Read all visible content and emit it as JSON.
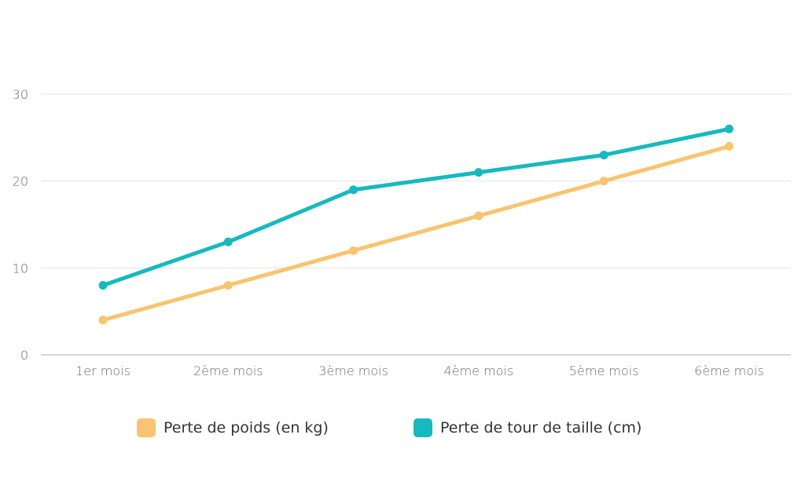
{
  "chart_data": {
    "type": "line",
    "categories": [
      "1er mois",
      "2ème mois",
      "3ème mois",
      "4ème mois",
      "5ème mois",
      "6ème mois"
    ],
    "series": [
      {
        "name": "Perte de poids (en kg)",
        "color": "#f8c471",
        "values": [
          4,
          8,
          12,
          16,
          20,
          24
        ]
      },
      {
        "name": "Perte de tour de taille (cm)",
        "color": "#17b9be",
        "values": [
          8,
          13,
          19,
          21,
          23,
          26
        ]
      }
    ],
    "yticks": [
      "0",
      "10",
      "20",
      "30"
    ],
    "ylim": [
      0,
      30
    ],
    "grid": true,
    "legend_position": "bottom"
  }
}
